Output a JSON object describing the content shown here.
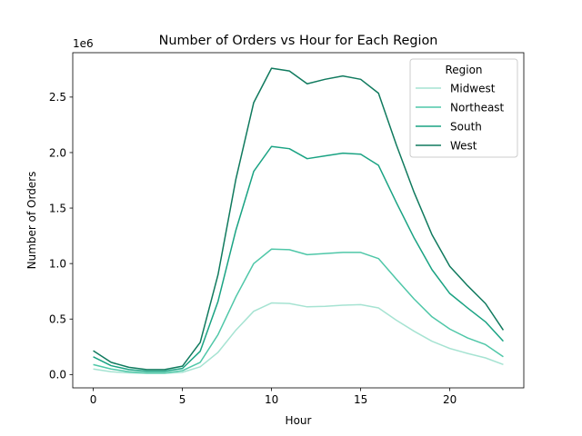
{
  "chart_data": {
    "type": "line",
    "title": "Number of Orders vs Hour for Each Region",
    "xlabel": "Hour",
    "ylabel": "Number of Orders",
    "y_multiplier_label": "1e6",
    "xlim": [
      -1.15,
      24.15
    ],
    "ylim": [
      -120000,
      2900000
    ],
    "x_ticks": [
      0,
      5,
      10,
      15,
      20
    ],
    "y_ticks": [
      0,
      500000,
      1000000,
      1500000,
      2000000,
      2500000
    ],
    "y_tick_labels": [
      "0.0",
      "0.5",
      "1.0",
      "1.5",
      "2.0",
      "2.5"
    ],
    "grid": false,
    "legend": {
      "title": "Region",
      "position": "top-right"
    },
    "x": [
      0,
      1,
      2,
      3,
      4,
      5,
      6,
      7,
      8,
      9,
      10,
      11,
      12,
      13,
      14,
      15,
      16,
      17,
      18,
      19,
      20,
      21,
      22,
      23
    ],
    "series": [
      {
        "name": "Midwest",
        "color": "#a6e3d2",
        "values": [
          50000,
          25000,
          15000,
          10000,
          10000,
          20000,
          70000,
          200000,
          400000,
          570000,
          645000,
          640000,
          610000,
          615000,
          625000,
          630000,
          600000,
          490000,
          390000,
          300000,
          235000,
          190000,
          150000,
          90000
        ]
      },
      {
        "name": "Northeast",
        "color": "#4fc7a8",
        "values": [
          90000,
          50000,
          25000,
          15000,
          15000,
          35000,
          110000,
          360000,
          700000,
          1000000,
          1130000,
          1125000,
          1080000,
          1090000,
          1100000,
          1100000,
          1045000,
          860000,
          680000,
          520000,
          410000,
          330000,
          270000,
          160000
        ]
      },
      {
        "name": "South",
        "color": "#1aa383",
        "values": [
          160000,
          80000,
          45000,
          30000,
          30000,
          55000,
          210000,
          660000,
          1300000,
          1830000,
          2055000,
          2035000,
          1945000,
          1970000,
          1995000,
          1985000,
          1885000,
          1550000,
          1230000,
          945000,
          730000,
          600000,
          475000,
          300000
        ]
      },
      {
        "name": "West",
        "color": "#107a5e",
        "values": [
          215000,
          110000,
          65000,
          45000,
          45000,
          75000,
          290000,
          900000,
          1760000,
          2450000,
          2760000,
          2735000,
          2620000,
          2660000,
          2690000,
          2660000,
          2535000,
          2070000,
          1640000,
          1260000,
          975000,
          800000,
          640000,
          400000
        ]
      }
    ]
  }
}
